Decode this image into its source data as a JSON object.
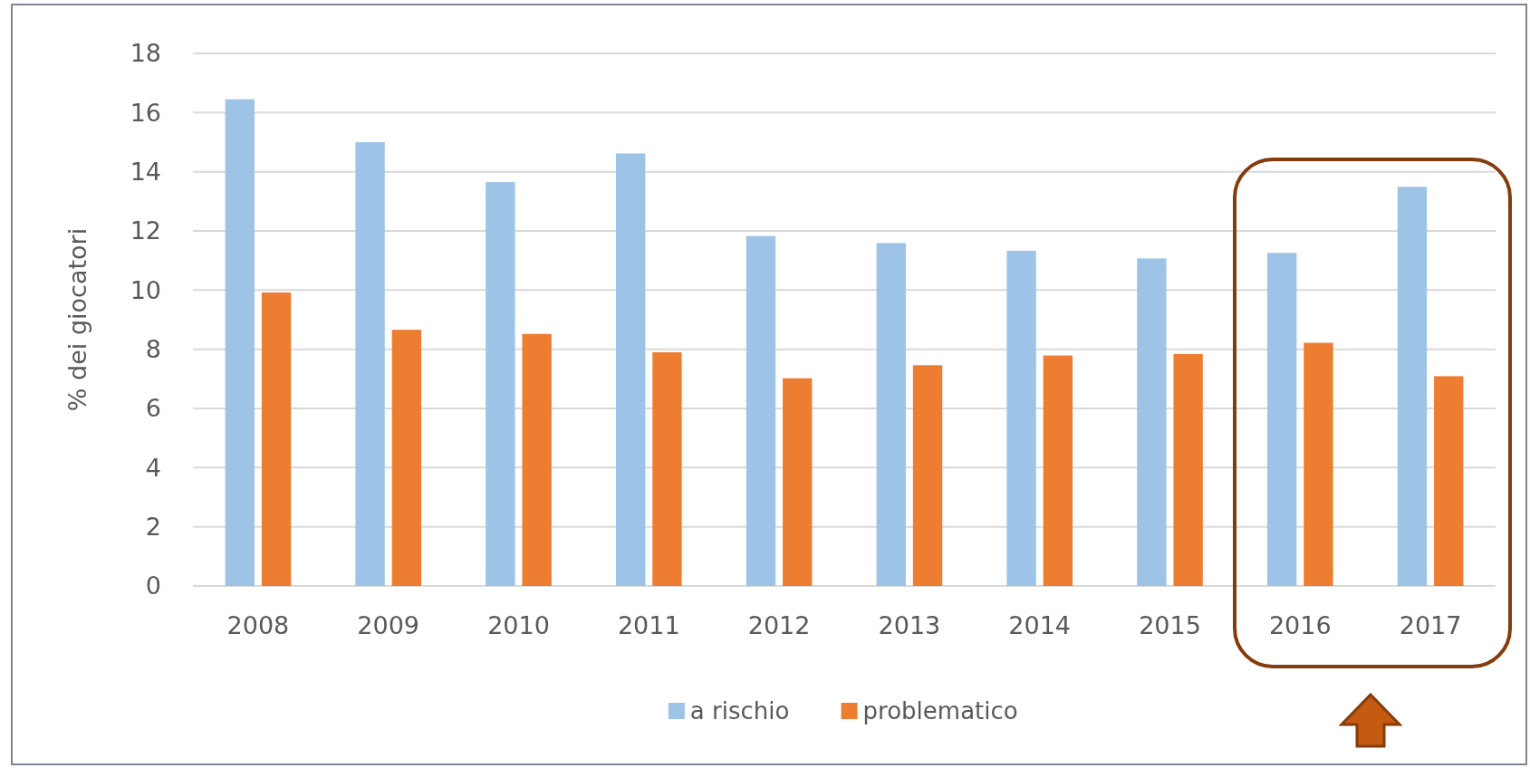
{
  "chart_data": {
    "type": "bar",
    "ylabel": "% dei giocatori",
    "categories": [
      "2008",
      "2009",
      "2010",
      "2011",
      "2012",
      "2013",
      "2014",
      "2015",
      "2016",
      "2017"
    ],
    "series": [
      {
        "name": "a rischio",
        "color": "#9dc3e6",
        "values": [
          16.45,
          15.0,
          13.65,
          14.62,
          11.83,
          11.59,
          11.33,
          11.07,
          11.26,
          13.49
        ]
      },
      {
        "name": "problematico",
        "color": "#ed7d31",
        "values": [
          9.92,
          8.66,
          8.52,
          7.9,
          7.02,
          7.46,
          7.79,
          7.84,
          8.22,
          7.09
        ]
      }
    ],
    "ylim": [
      0,
      18
    ],
    "yticks": [
      0,
      2,
      4,
      6,
      8,
      10,
      12,
      14,
      16,
      18
    ],
    "grid": "y",
    "legend": "bottom"
  }
}
